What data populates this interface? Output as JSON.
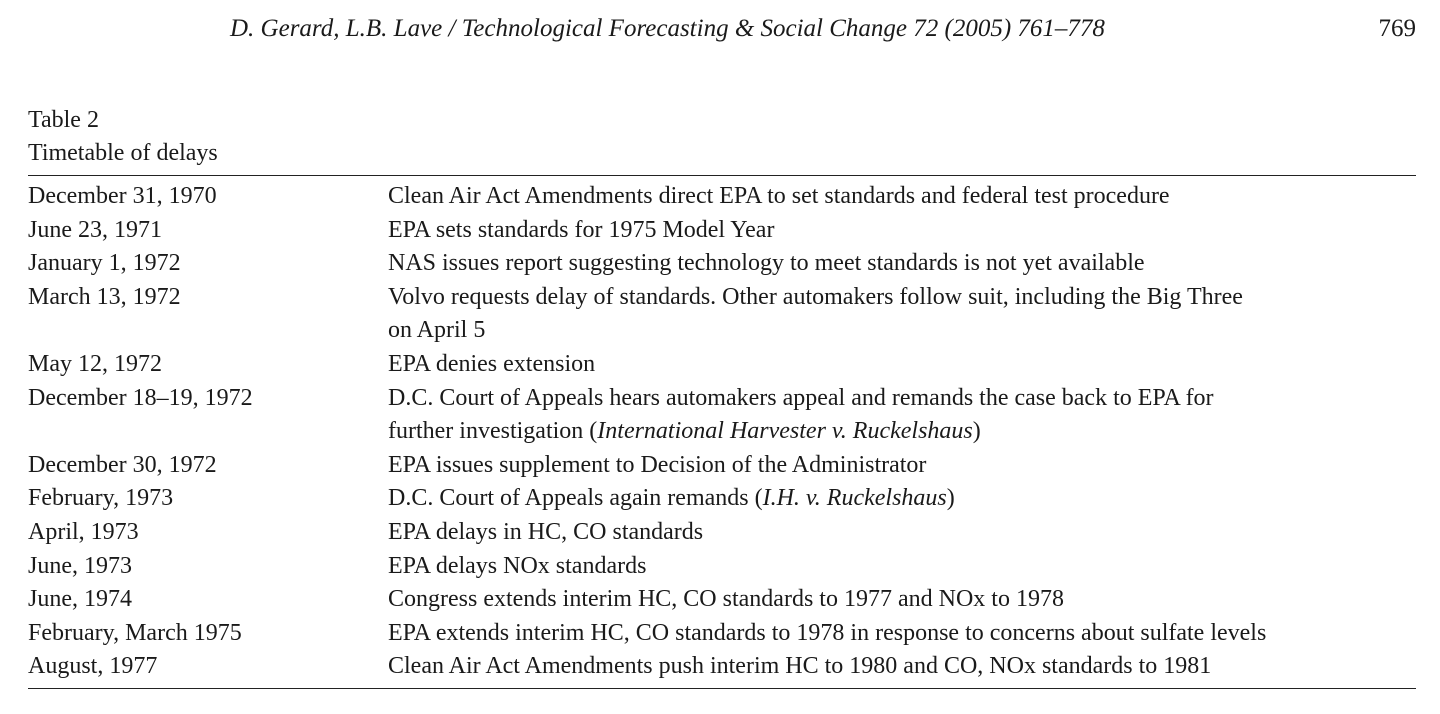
{
  "header": {
    "running_title": "D. Gerard, L.B. Lave / Technological Forecasting & Social Change 72 (2005) 761–778",
    "page_number": "769"
  },
  "table": {
    "label": "Table 2",
    "title": "Timetable of delays",
    "rows": [
      {
        "date": "December 31, 1970",
        "lines": [
          [
            "Clean Air Act Amendments direct EPA to set standards and federal test procedure"
          ]
        ]
      },
      {
        "date": "June 23, 1971",
        "lines": [
          [
            "EPA sets standards for 1975 Model Year"
          ]
        ]
      },
      {
        "date": "January 1, 1972",
        "lines": [
          [
            "NAS issues report suggesting technology to meet standards is not yet available"
          ]
        ]
      },
      {
        "date": "March 13, 1972",
        "lines": [
          [
            "Volvo requests delay of standards. Other automakers follow suit, including the Big Three"
          ],
          [
            "on April 5"
          ]
        ]
      },
      {
        "date": "May 12, 1972",
        "lines": [
          [
            "EPA denies extension"
          ]
        ]
      },
      {
        "date": "December 18–19, 1972",
        "lines": [
          [
            "D.C. Court of Appeals hears automakers appeal and remands the case back to EPA for"
          ],
          [
            "further investigation (",
            "International Harvester v. Ruckelshaus",
            ")"
          ]
        ]
      },
      {
        "date": "December 30, 1972",
        "lines": [
          [
            "EPA issues supplement to Decision of the Administrator"
          ]
        ]
      },
      {
        "date": "February, 1973",
        "lines": [
          [
            "D.C. Court of Appeals again remands (",
            "I.H. v. Ruckelshaus",
            ")"
          ]
        ]
      },
      {
        "date": "April, 1973",
        "lines": [
          [
            "EPA delays in HC, CO standards"
          ]
        ]
      },
      {
        "date": "June, 1973",
        "lines": [
          [
            "EPA delays NOx standards"
          ]
        ]
      },
      {
        "date": "June, 1974",
        "lines": [
          [
            "Congress extends interim HC, CO standards to 1977 and NOx to 1978"
          ]
        ]
      },
      {
        "date": "February, March 1975",
        "lines": [
          [
            "EPA extends interim HC, CO standards to 1978 in response to concerns about sulfate levels"
          ]
        ]
      },
      {
        "date": "August, 1977",
        "lines": [
          [
            "Clean Air Act Amendments push interim HC to 1980 and CO, NOx standards to 1981"
          ]
        ]
      }
    ]
  }
}
